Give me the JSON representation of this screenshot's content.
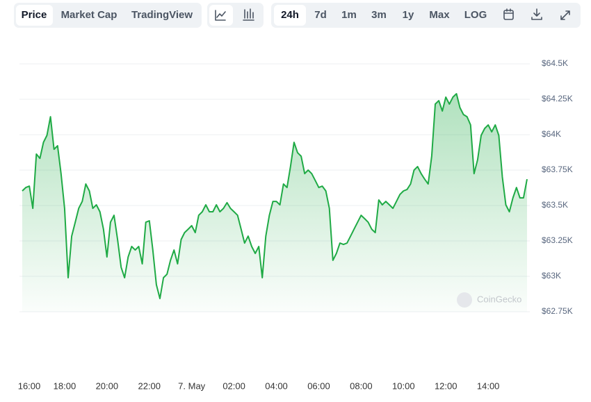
{
  "toolbar": {
    "data_tabs": [
      "Price",
      "Market Cap",
      "TradingView"
    ],
    "ranges": [
      "24h",
      "7d",
      "1m",
      "3m",
      "1y",
      "Max",
      "LOG"
    ]
  },
  "chart_data": {
    "type": "line",
    "color": "#1faa45",
    "fill": true,
    "grid": true,
    "watermark": "CoinGecko",
    "categories": [
      "16:00",
      null,
      null,
      null,
      null,
      null,
      null,
      null,
      null,
      null,
      null,
      null,
      "18:00",
      null,
      null,
      null,
      null,
      null,
      null,
      null,
      null,
      null,
      null,
      null,
      "20:00",
      null,
      null,
      null,
      null,
      null,
      null,
      null,
      null,
      null,
      null,
      null,
      "22:00",
      null,
      null,
      null,
      null,
      null,
      null,
      null,
      null,
      null,
      null,
      null,
      "7. May",
      null,
      null,
      null,
      null,
      null,
      null,
      null,
      null,
      null,
      null,
      null,
      "02:00",
      null,
      null,
      null,
      null,
      null,
      null,
      null,
      null,
      null,
      null,
      null,
      "04:00",
      null,
      null,
      null,
      null,
      null,
      null,
      null,
      null,
      null,
      null,
      null,
      "06:00",
      null,
      null,
      null,
      null,
      null,
      null,
      null,
      null,
      null,
      null,
      null,
      "08:00",
      null,
      null,
      null,
      null,
      null,
      null,
      null,
      null,
      null,
      null,
      null,
      "10:00",
      null,
      null,
      null,
      null,
      null,
      null,
      null,
      null,
      null,
      null,
      null,
      "12:00",
      null,
      null,
      null,
      null,
      null,
      null,
      null,
      null,
      null,
      null,
      null,
      "14:00",
      null,
      null,
      null,
      null,
      null,
      null,
      null,
      null,
      null,
      null,
      null
    ],
    "values": [
      63603,
      63627,
      63637,
      63480,
      63863,
      63833,
      63946,
      63995,
      64127,
      63897,
      63922,
      63725,
      63480,
      62990,
      63284,
      63382,
      63480,
      63529,
      63652,
      63603,
      63480,
      63505,
      63456,
      63333,
      63137,
      63382,
      63431,
      63260,
      63064,
      62990,
      63137,
      63211,
      63186,
      63211,
      63088,
      63382,
      63392,
      63186,
      62941,
      62843,
      62990,
      63015,
      63113,
      63186,
      63088,
      63260,
      63309,
      63333,
      63358,
      63309,
      63431,
      63456,
      63505,
      63456,
      63456,
      63505,
      63456,
      63480,
      63520,
      63480,
      63456,
      63431,
      63333,
      63235,
      63284,
      63211,
      63162,
      63211,
      62990,
      63284,
      63431,
      63529,
      63529,
      63505,
      63652,
      63627,
      63775,
      63946,
      63873,
      63848,
      63725,
      63750,
      63725,
      63677,
      63627,
      63637,
      63603,
      63480,
      63113,
      63162,
      63235,
      63225,
      63235,
      63284,
      63333,
      63382,
      63431,
      63407,
      63382,
      63333,
      63309,
      63539,
      63505,
      63529,
      63505,
      63480,
      63529,
      63578,
      63603,
      63613,
      63652,
      63750,
      63775,
      63725,
      63686,
      63652,
      63848,
      64216,
      64240,
      64167,
      64265,
      64216,
      64265,
      64289,
      64191,
      64142,
      64127,
      64069,
      63725,
      63823,
      63995,
      64044,
      64069,
      64020,
      64069,
      63995,
      63701,
      63505,
      63456,
      63554,
      63627,
      63554,
      63554,
      63686
    ],
    "ylim": [
      62750,
      64500
    ],
    "yticks": [
      {
        "value": 62750,
        "label": "$62.75K"
      },
      {
        "value": 63000,
        "label": "$63K"
      },
      {
        "value": 63250,
        "label": "$63.25K"
      },
      {
        "value": 63500,
        "label": "$63.5K"
      },
      {
        "value": 63750,
        "label": "$63.75K"
      },
      {
        "value": 64000,
        "label": "$64K"
      },
      {
        "value": 64250,
        "label": "$64.25K"
      },
      {
        "value": 64500,
        "label": "$64.5K"
      }
    ]
  }
}
